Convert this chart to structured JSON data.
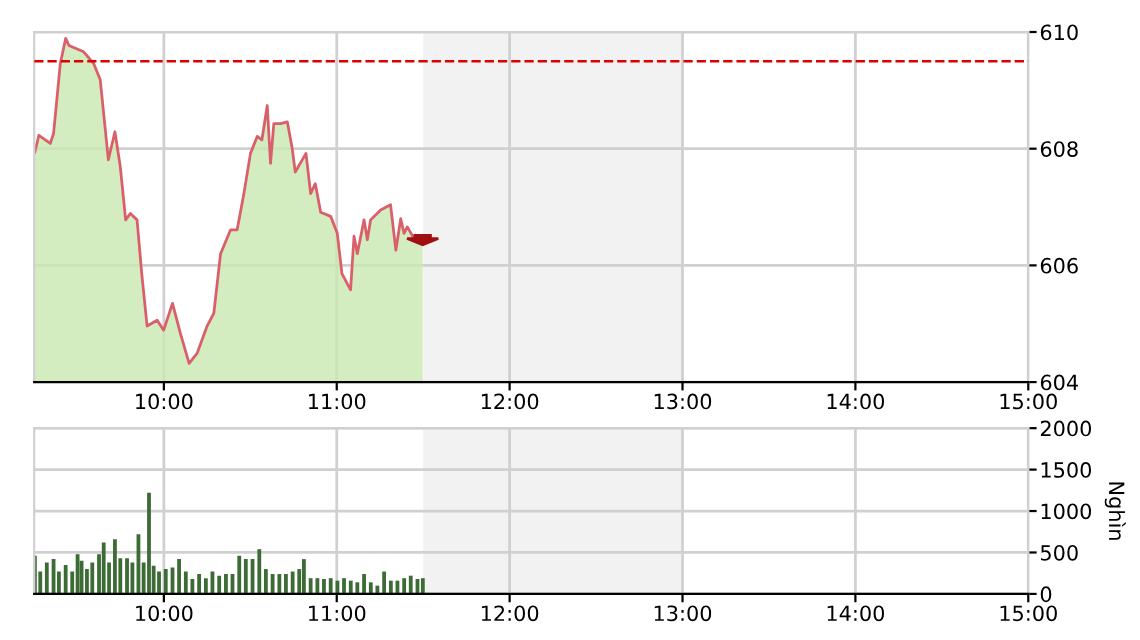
{
  "chart_data": [
    {
      "type": "area",
      "xlim": [
        9.25,
        15
      ],
      "ylim": [
        604,
        610
      ],
      "yticks": [
        604,
        606,
        608,
        610
      ],
      "xticks": [
        {
          "value": 10,
          "label": "10:00"
        },
        {
          "value": 11,
          "label": "11:00"
        },
        {
          "value": 12,
          "label": "12:00"
        },
        {
          "value": 13,
          "label": "13:00"
        },
        {
          "value": 14,
          "label": "14:00"
        },
        {
          "value": 15,
          "label": "15:00"
        }
      ],
      "grid": true,
      "legend": false,
      "ref_lines": [
        {
          "axis": "y",
          "value": 609.5,
          "color": "#dd0000",
          "line_style": "dashed"
        }
      ],
      "bands": [
        {
          "axis": "x",
          "from": 11.5,
          "to": 13,
          "color": "#f2f2f2"
        }
      ],
      "series": [
        {
          "color": "#c8e8b0",
          "x": [
            9.254,
            9.277,
            9.343,
            9.362,
            9.401,
            9.432,
            9.451,
            9.536,
            9.594,
            9.632,
            9.679,
            9.717,
            9.748,
            9.779,
            9.806,
            9.845,
            9.872,
            9.903,
            9.961,
            9.999,
            10.05,
            10.096,
            10.146,
            10.192,
            10.25,
            10.289,
            10.328,
            10.386,
            10.424,
            10.463,
            10.501,
            10.54,
            10.567,
            10.598,
            10.617,
            10.636,
            10.675,
            10.714,
            10.741,
            10.76,
            10.822,
            10.849,
            10.876,
            10.907,
            10.965,
            11.003,
            11.03,
            11.08,
            11.1,
            11.119,
            11.158,
            11.177,
            11.196,
            11.254,
            11.311,
            11.342,
            11.37,
            11.389,
            11.408,
            11.447,
            11.497
          ],
          "values": [
            607.94,
            608.23,
            608.09,
            608.26,
            609.46,
            609.89,
            609.77,
            609.66,
            609.46,
            609.18,
            607.81,
            608.29,
            607.69,
            606.78,
            606.89,
            606.78,
            605.86,
            604.96,
            605.06,
            604.89,
            605.35,
            604.83,
            604.32,
            604.49,
            604.96,
            605.18,
            606.2,
            606.61,
            606.61,
            607.23,
            607.92,
            608.21,
            608.15,
            608.74,
            607.75,
            608.43,
            608.43,
            608.46,
            608.03,
            607.6,
            607.92,
            607.23,
            607.4,
            606.91,
            606.84,
            606.55,
            605.86,
            605.58,
            606.5,
            606.2,
            606.78,
            606.44,
            606.78,
            606.95,
            607.04,
            606.26,
            606.8,
            606.55,
            606.66,
            606.46,
            606.46
          ]
        },
        {
          "type": "line",
          "color": "#d9606a",
          "x": [
            9.254,
            9.277,
            9.343,
            9.362,
            9.401,
            9.432,
            9.451,
            9.536,
            9.594,
            9.632,
            9.679,
            9.717,
            9.748,
            9.779,
            9.806,
            9.845,
            9.872,
            9.903,
            9.961,
            9.999,
            10.05,
            10.096,
            10.146,
            10.192,
            10.25,
            10.289,
            10.328,
            10.386,
            10.424,
            10.463,
            10.501,
            10.54,
            10.567,
            10.598,
            10.617,
            10.636,
            10.675,
            10.714,
            10.741,
            10.76,
            10.822,
            10.849,
            10.876,
            10.907,
            10.965,
            11.003,
            11.03,
            11.08,
            11.1,
            11.119,
            11.158,
            11.177,
            11.196,
            11.254,
            11.311,
            11.342,
            11.37,
            11.389,
            11.408,
            11.447,
            11.497
          ],
          "values": [
            607.94,
            608.23,
            608.09,
            608.26,
            609.46,
            609.89,
            609.77,
            609.66,
            609.46,
            609.18,
            607.81,
            608.29,
            607.69,
            606.78,
            606.89,
            606.78,
            605.86,
            604.96,
            605.06,
            604.89,
            605.35,
            604.83,
            604.32,
            604.49,
            604.96,
            605.18,
            606.2,
            606.61,
            606.61,
            607.23,
            607.92,
            608.21,
            608.15,
            608.74,
            607.75,
            608.43,
            608.43,
            608.46,
            608.03,
            607.6,
            607.92,
            607.23,
            607.4,
            606.91,
            606.84,
            606.55,
            605.86,
            605.58,
            606.5,
            606.2,
            606.78,
            606.44,
            606.78,
            606.95,
            607.04,
            606.26,
            606.8,
            606.55,
            606.66,
            606.46,
            606.46
          ]
        }
      ]
    },
    {
      "type": "bar",
      "xlim": [
        9.25,
        15
      ],
      "ylim": [
        0,
        2000
      ],
      "yticks": [
        0,
        500,
        1000,
        1500,
        2000
      ],
      "ylabel": "Nghìn",
      "xticks": [
        {
          "value": 10,
          "label": "10:00"
        },
        {
          "value": 11,
          "label": "11:00"
        },
        {
          "value": 12,
          "label": "12:00"
        },
        {
          "value": 13,
          "label": "13:00"
        },
        {
          "value": 14,
          "label": "14:00"
        },
        {
          "value": 15,
          "label": "15:00"
        }
      ],
      "grid": true,
      "legend": false,
      "bands": [
        {
          "axis": "x",
          "from": 11.5,
          "to": 13,
          "color": "#f2f2f2"
        }
      ],
      "series": [
        {
          "color": "#3d6b35",
          "x": [
            9.254,
            9.285,
            9.323,
            9.362,
            9.393,
            9.432,
            9.47,
            9.501,
            9.524,
            9.555,
            9.586,
            9.625,
            9.652,
            9.683,
            9.717,
            9.748,
            9.787,
            9.818,
            9.853,
            9.883,
            9.914,
            9.941,
            9.972,
            10.011,
            10.05,
            10.088,
            10.127,
            10.165,
            10.204,
            10.243,
            10.281,
            10.32,
            10.359,
            10.397,
            10.436,
            10.474,
            10.513,
            10.552,
            10.59,
            10.629,
            10.668,
            10.706,
            10.745,
            10.783,
            10.81,
            10.849,
            10.888,
            10.926,
            10.965,
            11.004,
            11.042,
            11.081,
            11.119,
            11.158,
            11.197,
            11.235,
            11.274,
            11.313,
            11.351,
            11.39,
            11.428,
            11.467,
            11.498
          ],
          "values": [
            460,
            270,
            380,
            420,
            270,
            350,
            270,
            480,
            400,
            300,
            380,
            480,
            620,
            380,
            660,
            430,
            430,
            380,
            720,
            380,
            1220,
            340,
            270,
            300,
            320,
            420,
            270,
            180,
            240,
            190,
            270,
            220,
            240,
            240,
            460,
            420,
            420,
            540,
            300,
            240,
            240,
            240,
            270,
            300,
            420,
            190,
            190,
            180,
            190,
            160,
            190,
            160,
            140,
            240,
            140,
            100,
            270,
            160,
            160,
            190,
            220,
            180,
            190
          ]
        }
      ]
    }
  ]
}
